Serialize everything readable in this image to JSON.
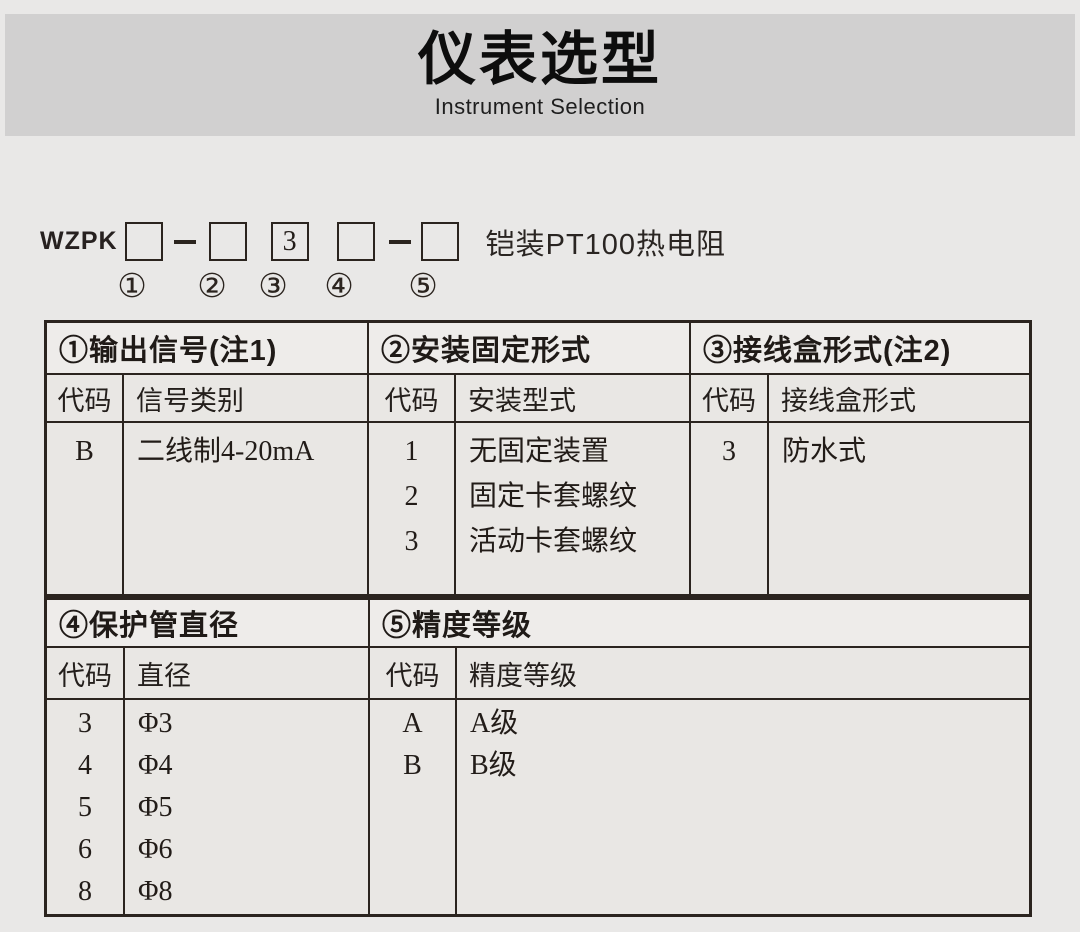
{
  "banner": {
    "title": "仪表选型",
    "subtitle": "Instrument Selection",
    "bg_color": "#d1d0d0"
  },
  "model_code": {
    "prefix": "WZPK",
    "slots": [
      "",
      "",
      "3",
      "",
      ""
    ],
    "suffix": "铠装PT100热电阻",
    "markers": [
      "①",
      "②",
      "③",
      "④",
      "⑤"
    ]
  },
  "colors": {
    "page_bg": "#e9e8e7",
    "table_line": "#2b241f",
    "header_cell_bg": "#eeecea",
    "cell_bg": "#e9e7e4",
    "ink": "#221c18"
  },
  "selection_tables": [
    {
      "sections": [
        {
          "header": "①输出信号(注1)",
          "col_headers": [
            "代码",
            "信号类别"
          ],
          "rows": [
            {
              "code": "B",
              "desc": "二线制4-20mA"
            }
          ]
        },
        {
          "header": "②安装固定形式",
          "col_headers": [
            "代码",
            "安装型式"
          ],
          "rows": [
            {
              "code": "1",
              "desc": "无固定装置"
            },
            {
              "code": "2",
              "desc": "固定卡套螺纹"
            },
            {
              "code": "3",
              "desc": "活动卡套螺纹"
            }
          ]
        },
        {
          "header": "③接线盒形式(注2)",
          "col_headers": [
            "代码",
            "接线盒形式"
          ],
          "rows": [
            {
              "code": "3",
              "desc": "防水式"
            }
          ]
        }
      ]
    },
    {
      "sections": [
        {
          "header": "④保护管直径",
          "col_headers": [
            "代码",
            "直径"
          ],
          "rows": [
            {
              "code": "3",
              "desc": "Φ3"
            },
            {
              "code": "4",
              "desc": "Φ4"
            },
            {
              "code": "5",
              "desc": "Φ5"
            },
            {
              "code": "6",
              "desc": "Φ6"
            },
            {
              "code": "8",
              "desc": "Φ8"
            }
          ]
        },
        {
          "header": "⑤精度等级",
          "col_headers": [
            "代码",
            "精度等级"
          ],
          "rows": [
            {
              "code": "A",
              "desc": "A级"
            },
            {
              "code": "B",
              "desc": "B级"
            }
          ]
        }
      ]
    }
  ]
}
